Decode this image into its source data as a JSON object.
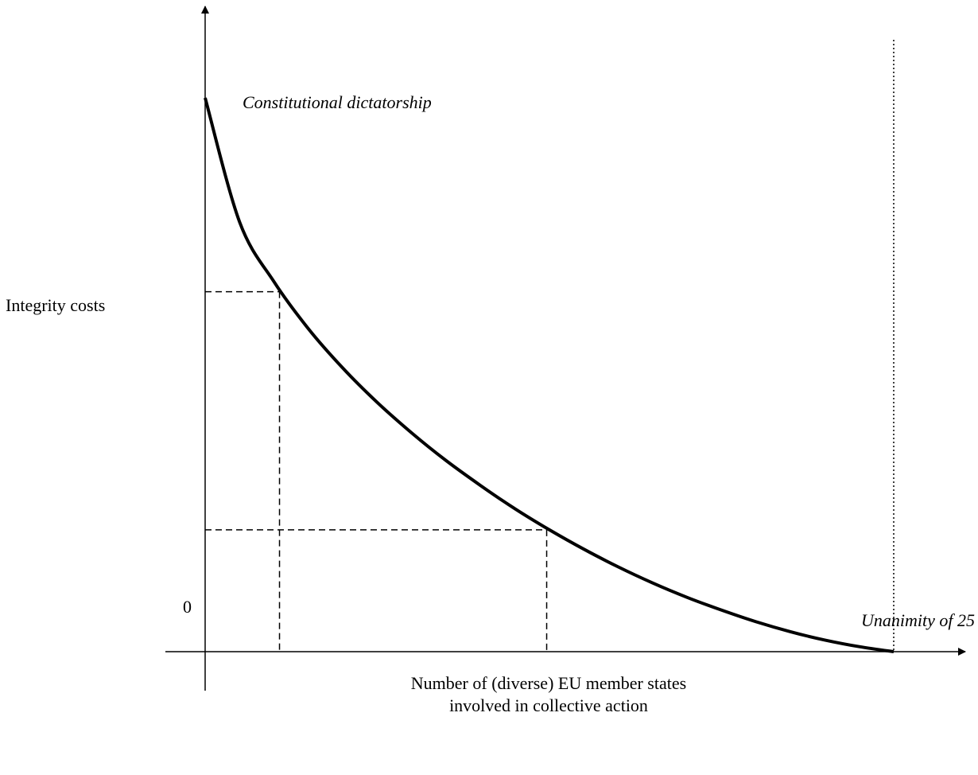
{
  "chart_data": {
    "type": "line",
    "title": "",
    "ylabel": "Integrity costs",
    "xlabel_lines": [
      "Number of (diverse) EU member states",
      "involved in collective action"
    ],
    "origin_label": "0",
    "x_end_label": "Unanimity of 25",
    "curve_label": "Constitutional dictatorship",
    "xlim": [
      0,
      25
    ],
    "ylim": [
      0,
      100
    ],
    "grid": false,
    "legend": "none",
    "series": [
      {
        "style": "solid-thick",
        "color": "#000000",
        "x": [
          0,
          1.25,
          2.5,
          3.75,
          5,
          6.25,
          7.5,
          8.75,
          10,
          11.25,
          12.5,
          13.75,
          15,
          16.25,
          17.5,
          18.75,
          20,
          21.25,
          22.5,
          23.75,
          25
        ],
        "y": [
          100,
          77.6,
          66.8,
          58.3,
          51.2,
          45,
          39.5,
          34.5,
          30,
          25.8,
          22,
          18.5,
          15.3,
          12.4,
          9.8,
          7.5,
          5.4,
          3.6,
          2.1,
          0.9,
          0
        ]
      }
    ],
    "reference_points": [
      {
        "x": 2.7,
        "y": 65
      },
      {
        "x": 12.4,
        "y": 22
      }
    ],
    "unanimity_x": 25
  }
}
